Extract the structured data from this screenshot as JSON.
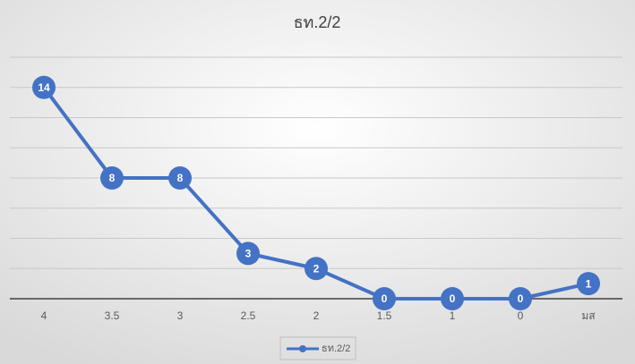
{
  "chart_data": {
    "type": "line",
    "title": "ธท.2/2",
    "categories": [
      "4",
      "3.5",
      "3",
      "2.5",
      "2",
      "1.5",
      "1",
      "0",
      "มส"
    ],
    "series": [
      {
        "name": "ธท.2/2",
        "color": "#4472c4",
        "values": [
          14,
          8,
          8,
          3,
          2,
          0,
          0,
          0,
          1
        ]
      }
    ],
    "ylim": [
      0,
      16
    ],
    "yticks": [
      0,
      2,
      4,
      6,
      8,
      10,
      12,
      14,
      16
    ],
    "grid": true,
    "data_labels": true,
    "legend": "bottom"
  }
}
